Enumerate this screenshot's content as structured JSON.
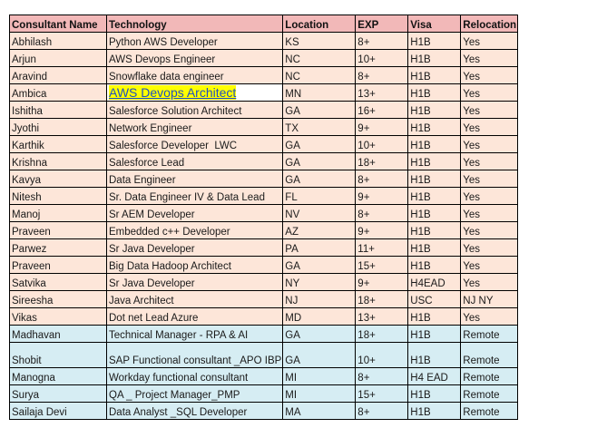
{
  "table": {
    "headers": [
      "Consultant Name",
      "Technology",
      "Location",
      "EXP",
      "Visa",
      "Relocation"
    ],
    "colors": {
      "header_bg": "#f2b8b8",
      "peach_row_bg": "#fde6d9",
      "blue_row_bg": "#d6edf3",
      "highlight_bg": "#ffff00",
      "link_color": "#1f4fc4"
    },
    "rows": [
      {
        "name": "Abhilash",
        "technology": "Python AWS Developer",
        "location": "KS",
        "exp": "8+",
        "visa": "H1B",
        "relocation": "Yes",
        "group": "peach"
      },
      {
        "name": "Arjun",
        "technology": "AWS Devops Engineer",
        "location": "NC",
        "exp": "10+",
        "visa": "H1B",
        "relocation": "Yes",
        "group": "peach"
      },
      {
        "name": "Aravind",
        "technology": "Snowflake data engineer",
        "location": "NC",
        "exp": "8+",
        "visa": "H1B",
        "relocation": "Yes",
        "group": "peach"
      },
      {
        "name": "Ambica",
        "technology": "AWS Devops Architect",
        "location": "MN",
        "exp": "13+",
        "visa": "H1B",
        "relocation": "Yes",
        "group": "peach",
        "technology_highlighted_link": true
      },
      {
        "name": "Ishitha",
        "technology": "Salesforce Solution Architect",
        "location": "GA",
        "exp": "16+",
        "visa": "H1B",
        "relocation": "Yes",
        "group": "peach"
      },
      {
        "name": "Jyothi",
        "technology": "Network Engineer",
        "location": "TX",
        "exp": "9+",
        "visa": "H1B",
        "relocation": "Yes",
        "group": "peach"
      },
      {
        "name": "Karthik",
        "technology": "Salesforce Developer  LWC",
        "location": "GA",
        "exp": "10+",
        "visa": "H1B",
        "relocation": "Yes",
        "group": "peach"
      },
      {
        "name": "Krishna",
        "technology": "Salesforce Lead",
        "location": "GA",
        "exp": "18+",
        "visa": "H1B",
        "relocation": "Yes",
        "group": "peach"
      },
      {
        "name": "Kavya",
        "technology": "Data Engineer",
        "location": "GA",
        "exp": "8+",
        "visa": "H1B",
        "relocation": "Yes",
        "group": "peach"
      },
      {
        "name": "Nitesh",
        "technology": "Sr. Data Engineer IV & Data Lead",
        "location": "FL",
        "exp": "9+",
        "visa": "H1B",
        "relocation": "Yes",
        "group": "peach"
      },
      {
        "name": "Manoj",
        "technology": "Sr AEM Developer",
        "location": "NV",
        "exp": "8+",
        "visa": "H1B",
        "relocation": "Yes",
        "group": "peach"
      },
      {
        "name": "Praveen",
        "technology": "Embedded c++ Developer",
        "location": "AZ",
        "exp": "9+",
        "visa": "H1B",
        "relocation": "Yes",
        "group": "peach"
      },
      {
        "name": "Parwez",
        "technology": "Sr Java Developer",
        "location": "PA",
        "exp": "11+",
        "visa": "H1B",
        "relocation": "Yes",
        "group": "peach"
      },
      {
        "name": "Praveen",
        "technology": "Big Data Hadoop Architect",
        "location": "GA",
        "exp": "15+",
        "visa": "H1B",
        "relocation": "Yes",
        "group": "peach"
      },
      {
        "name": "Satvika",
        "technology": "Sr Java Developer",
        "location": "NY",
        "exp": "9+",
        "visa": "H4EAD",
        "relocation": "Yes",
        "group": "peach"
      },
      {
        "name": "Sireesha",
        "technology": "Java Architect",
        "location": "NJ",
        "exp": "18+",
        "visa": "USC",
        "relocation": "NJ NY",
        "group": "peach"
      },
      {
        "name": "Vikas",
        "technology": "Dot net Lead Azure",
        "location": "MD",
        "exp": "13+",
        "visa": "H1B",
        "relocation": "Yes",
        "group": "peach"
      },
      {
        "name": "Madhavan",
        "technology": "Technical Manager - RPA & AI",
        "location": "GA",
        "exp": "18+",
        "visa": "H1B",
        "relocation": "Remote",
        "group": "blue"
      },
      {
        "name": "Shobit",
        "technology": "SAP Functional consultant _APO IBP",
        "location": "GA",
        "exp": "10+",
        "visa": "H1B",
        "relocation": "Remote",
        "group": "blue"
      },
      {
        "name": "Manogna",
        "technology": "Workday functional consultant",
        "location": "MI",
        "exp": "8+",
        "visa": "H4 EAD",
        "relocation": "Remote",
        "group": "blue"
      },
      {
        "name": "Surya",
        "technology": "QA _ Project Manager_PMP",
        "location": "MI",
        "exp": "15+",
        "visa": "H1B",
        "relocation": "Remote",
        "group": "blue"
      },
      {
        "name": "Sailaja Devi",
        "technology": "Data Analyst _SQL Developer",
        "location": "MA",
        "exp": "8+",
        "visa": "H1B",
        "relocation": "Remote",
        "group": "blue"
      }
    ]
  }
}
